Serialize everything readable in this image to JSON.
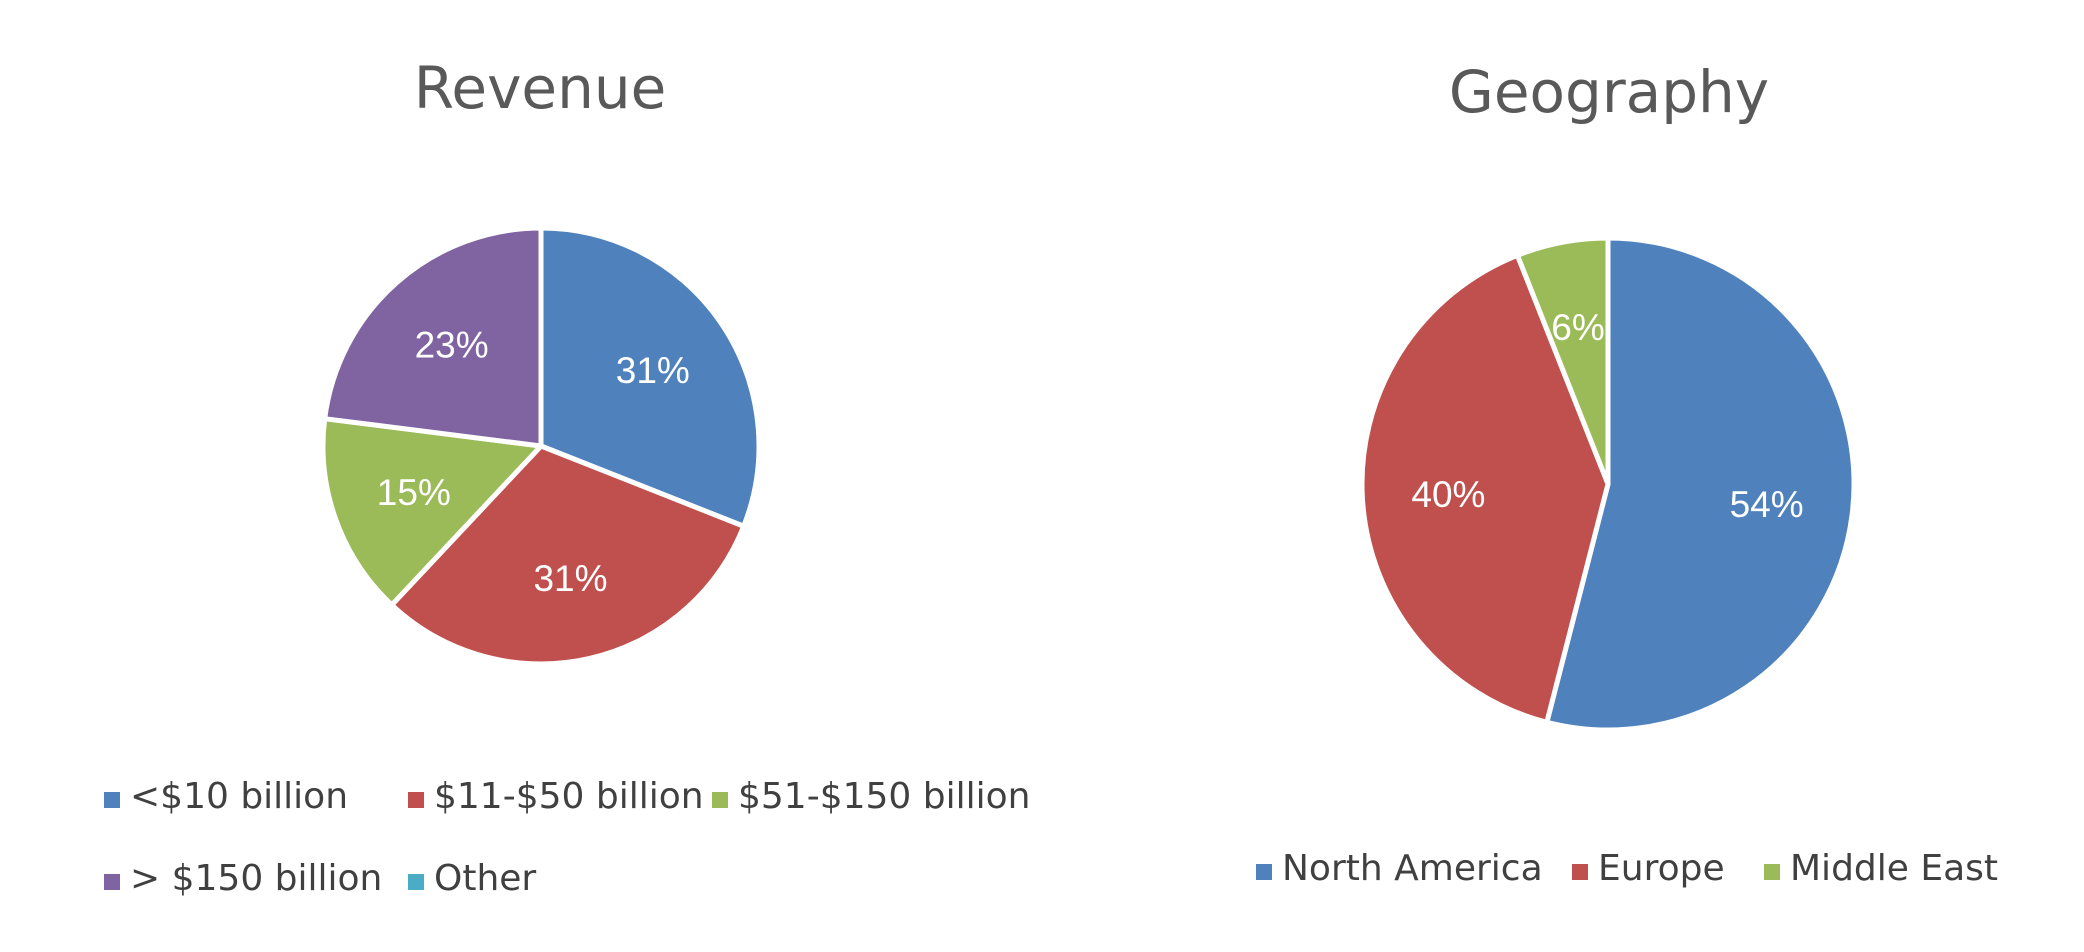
{
  "chart_data": [
    {
      "type": "pie",
      "title": "Revenue",
      "slices": [
        {
          "label": "<$10 billion",
          "value": 31,
          "data_label": "31%",
          "color": "#4F81BD"
        },
        {
          "label": "$11-$50 billion",
          "value": 31,
          "data_label": "31%",
          "color": "#C0504D"
        },
        {
          "label": "$51-$150 billion",
          "value": 15,
          "data_label": "15%",
          "color": "#9BBB59"
        },
        {
          "label": "> $150 billion",
          "value": 23,
          "data_label": "23%",
          "color": "#8064A2"
        },
        {
          "label": "Other",
          "value": 0,
          "data_label": "",
          "color": "#4BACC6"
        }
      ],
      "legend_position": "bottom"
    },
    {
      "type": "pie",
      "title": "Geography",
      "slices": [
        {
          "label": "North America",
          "value": 54,
          "data_label": "54%",
          "color": "#4F81BD"
        },
        {
          "label": "Europe",
          "value": 40,
          "data_label": "40%",
          "color": "#C0504D"
        },
        {
          "label": "Middle East",
          "value": 6,
          "data_label": "6%",
          "color": "#9BBB59"
        }
      ],
      "legend_position": "bottom"
    }
  ]
}
